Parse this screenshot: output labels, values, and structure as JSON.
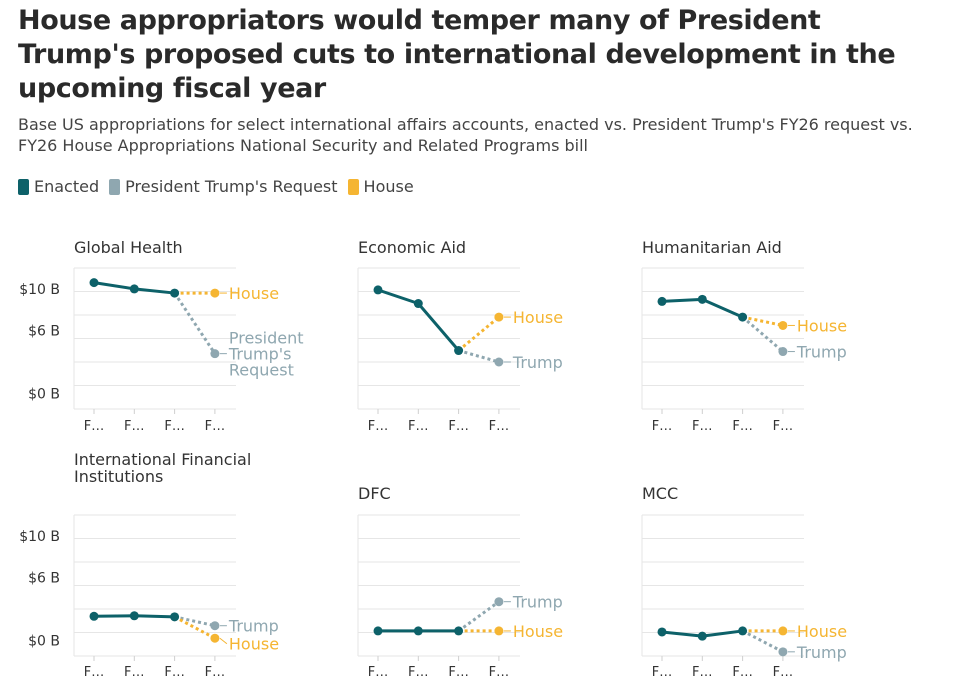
{
  "title": "House appropriators would temper many of President Trump's proposed cuts to international development in the upcoming fiscal year",
  "subtitle": "Base US appropriations for select international affairs accounts, enacted vs. President Trump's FY26 request vs. FY26 House Appropriations National Security and Related Programs bill",
  "legend": [
    {
      "label": "Enacted",
      "color": "#0d6169"
    },
    {
      "label": "President Trump's Request",
      "color": "#8fa7b0"
    },
    {
      "label": "House",
      "color": "#f5b532"
    }
  ],
  "colors": {
    "enacted": "#0d6169",
    "request": "#8fa7b0",
    "house": "#f5b532",
    "grid": "#e6e6e6"
  },
  "chart_data": [
    {
      "type": "line",
      "title": [
        "Global Health"
      ],
      "categories": [
        "F…",
        "F…",
        "F…",
        "F…"
      ],
      "yticks": [
        {
          "v": 0,
          "label": "$0 B"
        },
        {
          "v": 6,
          "label": "$6 B"
        },
        {
          "v": 10,
          "label": "$10 B"
        }
      ],
      "ylim": [
        -1.5,
        12
      ],
      "enacted": [
        10.6,
        10.0,
        9.6
      ],
      "request": {
        "value": 3.8,
        "label": [
          "President",
          "Trump's",
          "Request"
        ]
      },
      "house": {
        "value": 9.6,
        "label": "House"
      }
    },
    {
      "type": "line",
      "title": [
        "Economic Aid"
      ],
      "categories": [
        "F…",
        "F…",
        "F…",
        "F…"
      ],
      "yticks": [],
      "ylim": [
        -1.5,
        12
      ],
      "enacted": [
        9.9,
        8.6,
        4.1
      ],
      "request": {
        "value": 3.0,
        "label": [
          "Trump"
        ]
      },
      "house": {
        "value": 7.3,
        "label": "House"
      }
    },
    {
      "type": "line",
      "title": [
        "Humanitarian Aid"
      ],
      "categories": [
        "F…",
        "F…",
        "F…",
        "F…"
      ],
      "yticks": [],
      "ylim": [
        -1.5,
        12
      ],
      "enacted": [
        8.8,
        9.0,
        7.3
      ],
      "request": {
        "value": 4.0,
        "label": [
          "Trump"
        ]
      },
      "house": {
        "value": 6.5,
        "label": "House"
      }
    },
    {
      "type": "line",
      "title": [
        "International Financial",
        "Institutions"
      ],
      "categories": [
        "F…",
        "F…",
        "F…",
        "F…"
      ],
      "yticks": [
        {
          "v": 0,
          "label": "$0 B"
        },
        {
          "v": 6,
          "label": "$6 B"
        },
        {
          "v": 10,
          "label": "$10 B"
        }
      ],
      "ylim": [
        -1.5,
        12
      ],
      "enacted": [
        2.3,
        2.35,
        2.25
      ],
      "request": {
        "value": 1.4,
        "label": [
          "Trump"
        ]
      },
      "house": {
        "value": 0.2,
        "label": "House"
      }
    },
    {
      "type": "line",
      "title": [
        "DFC"
      ],
      "categories": [
        "F…",
        "F…",
        "F…",
        "F…"
      ],
      "yticks": [],
      "ylim": [
        -1.5,
        12
      ],
      "enacted": [
        0.9,
        0.9,
        0.9
      ],
      "request": {
        "value": 3.7,
        "label": [
          "Trump"
        ]
      },
      "house": {
        "value": 0.9,
        "label": "House"
      }
    },
    {
      "type": "line",
      "title": [
        "MCC"
      ],
      "categories": [
        "F…",
        "F…",
        "F…",
        "F…"
      ],
      "yticks": [],
      "ylim": [
        -1.5,
        12
      ],
      "enacted": [
        0.8,
        0.4,
        0.9
      ],
      "request": {
        "value": -1.1,
        "label": [
          "Trump"
        ]
      },
      "house": {
        "value": 0.9,
        "label": "House"
      }
    }
  ]
}
